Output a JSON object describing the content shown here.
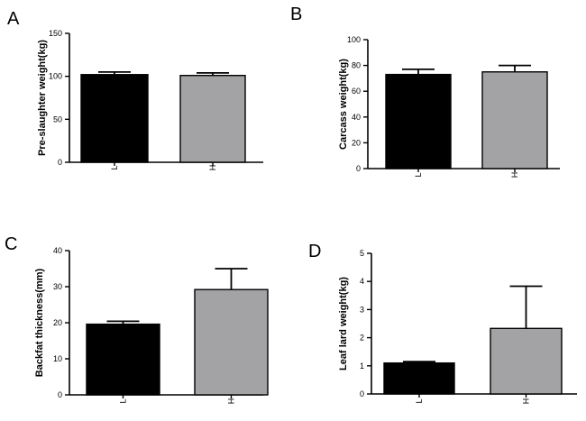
{
  "figure": {
    "panels": [
      "A",
      "B",
      "C",
      "D"
    ]
  },
  "colors": {
    "L": "#000000",
    "H": "#a3a3a5",
    "axis": "#000000"
  },
  "chart_data": [
    {
      "panel": "A",
      "type": "bar",
      "categories": [
        "L",
        "H"
      ],
      "values": [
        102,
        101
      ],
      "errors": [
        3,
        3
      ],
      "title": "",
      "xlabel": "",
      "ylabel": "Pre-slaughter weight(kg)",
      "ylim": [
        0,
        150
      ],
      "yticks": [
        0,
        50,
        100,
        150
      ]
    },
    {
      "panel": "B",
      "type": "bar",
      "categories": [
        "L",
        "H"
      ],
      "values": [
        73,
        75
      ],
      "errors": [
        4,
        5
      ],
      "title": "",
      "xlabel": "",
      "ylabel": "Carcass weight(kg)",
      "ylim": [
        0,
        100
      ],
      "yticks": [
        0,
        20,
        40,
        60,
        80,
        100
      ]
    },
    {
      "panel": "C",
      "type": "bar",
      "categories": [
        "L",
        "H"
      ],
      "values": [
        19.6,
        29.2
      ],
      "errors": [
        0.8,
        5.8
      ],
      "title": "",
      "xlabel": "",
      "ylabel": "Backfat thickness(mm)",
      "ylim": [
        0,
        40
      ],
      "yticks": [
        0,
        10,
        20,
        30,
        40
      ]
    },
    {
      "panel": "D",
      "type": "bar",
      "categories": [
        "L",
        "H"
      ],
      "values": [
        1.1,
        2.33
      ],
      "errors": [
        0.05,
        1.5
      ],
      "title": "",
      "xlabel": "",
      "ylabel": "Leaf lard weight(kg)",
      "ylim": [
        0,
        5
      ],
      "yticks": [
        0,
        1,
        2,
        3,
        4,
        5
      ]
    }
  ]
}
